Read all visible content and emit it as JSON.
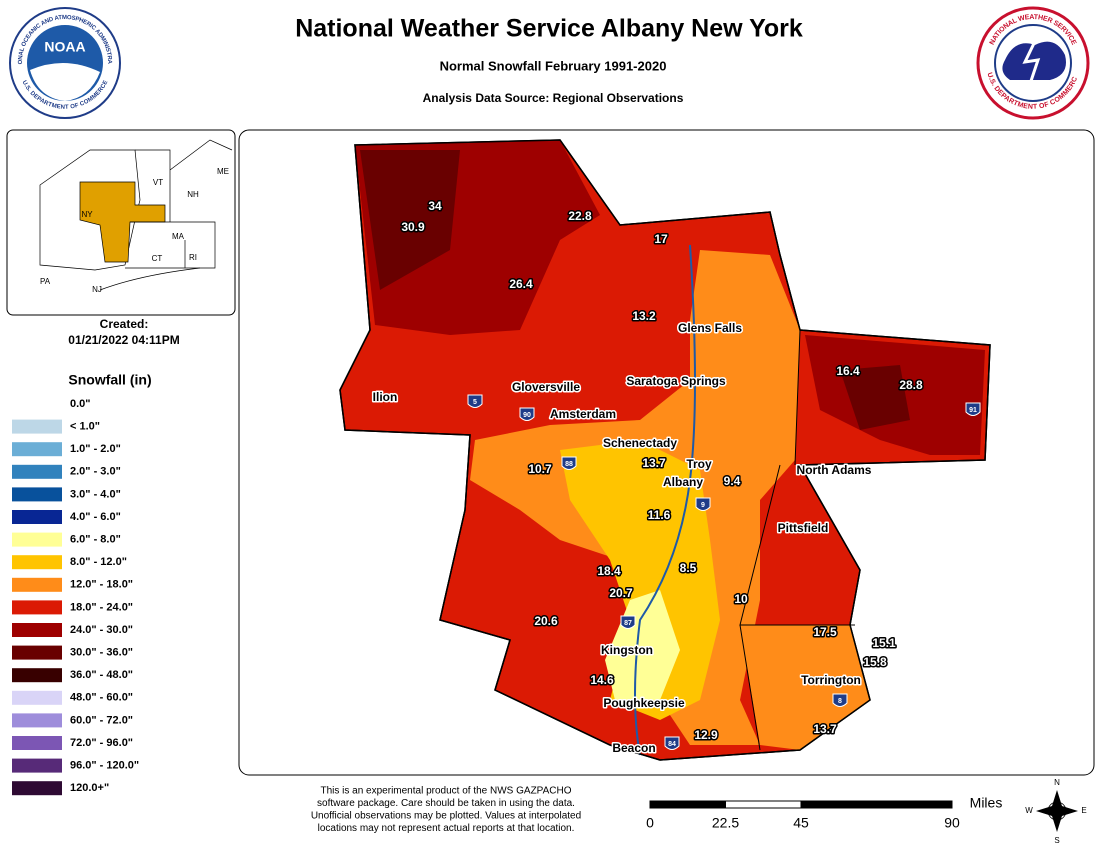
{
  "header": {
    "title": "National Weather Service Albany New York",
    "subtitle": "Normal Snowfall February 1991-2020",
    "source": "Analysis Data Source: Regional Observations",
    "left_logo": {
      "text": "NOAA",
      "ring_top": "NATIONAL OCEANIC AND ATMOSPHERIC ADMINISTRATION",
      "ring_bottom": "U.S. DEPARTMENT OF COMMERCE"
    },
    "right_logo": {
      "ring_top": "NATIONAL WEATHER SERVICE",
      "ring_bottom": "U.S. DEPARTMENT OF COMMERCE"
    }
  },
  "inset": {
    "labels": [
      "ME",
      "VT",
      "NH",
      "NY",
      "MA",
      "CT",
      "RI",
      "PA",
      "NJ"
    ]
  },
  "created": {
    "label": "Created:",
    "timestamp": "01/21/2022 04:11PM"
  },
  "legend": {
    "title": "Snowfall (in)",
    "entries": [
      {
        "label": "0.0\"",
        "color": "#ffffff"
      },
      {
        "label": "< 1.0\"",
        "color": "#bdd7e7"
      },
      {
        "label": "1.0\" - 2.0\"",
        "color": "#6baed6"
      },
      {
        "label": "2.0\" - 3.0\"",
        "color": "#3182bd"
      },
      {
        "label": "3.0\" - 4.0\"",
        "color": "#08519c"
      },
      {
        "label": "4.0\" - 6.0\"",
        "color": "#082694"
      },
      {
        "label": "6.0\" - 8.0\"",
        "color": "#ffff96"
      },
      {
        "label": "8.0\" - 12.0\"",
        "color": "#ffc400"
      },
      {
        "label": "12.0\" - 18.0\"",
        "color": "#ff8c19"
      },
      {
        "label": "18.0\" - 24.0\"",
        "color": "#db1a04"
      },
      {
        "label": "24.0\" - 30.0\"",
        "color": "#9e0000"
      },
      {
        "label": "30.0\" - 36.0\"",
        "color": "#690000"
      },
      {
        "label": "36.0\" - 48.0\"",
        "color": "#380000"
      },
      {
        "label": "48.0\" - 60.0\"",
        "color": "#d9d4f7"
      },
      {
        "label": "60.0\" - 72.0\"",
        "color": "#9e8ddb"
      },
      {
        "label": "72.0\" - 96.0\"",
        "color": "#7c56b4"
      },
      {
        "label": "96.0\" - 120.0\"",
        "color": "#572a78"
      },
      {
        "label": "120.0+\"",
        "color": "#2e0a33"
      }
    ]
  },
  "map": {
    "values": [
      34,
      30.9,
      22.8,
      17,
      26.4,
      13.2,
      16.4,
      28.8,
      10.7,
      13.7,
      9.4,
      11.6,
      18.4,
      8.5,
      20.7,
      10,
      20.6,
      17.5,
      15.1,
      15.8,
      14.6,
      12.9,
      13.7
    ],
    "cities": [
      "Glens Falls",
      "Saratoga Springs",
      "Gloversville",
      "Ilion",
      "Amsterdam",
      "Schenectady",
      "Troy",
      "Albany",
      "North Adams",
      "Pittsfield",
      "Kingston",
      "Poughkeepsie",
      "Torrington",
      "Beacon"
    ],
    "shields": [
      "5",
      "90",
      "88",
      "9",
      "87",
      "84",
      "8",
      "91"
    ]
  },
  "disclaimer": [
    "This is an experimental product of the NWS GAZPACHO",
    "software package. Care should be taken in using the data.",
    "Unofficial observations may be plotted. Values at interpolated",
    "locations may not represent actual reports at that location."
  ],
  "scale": {
    "ticks": [
      0,
      22.5,
      45,
      90
    ],
    "unit": "Miles"
  },
  "compass": [
    "N",
    "E",
    "S",
    "W"
  ]
}
